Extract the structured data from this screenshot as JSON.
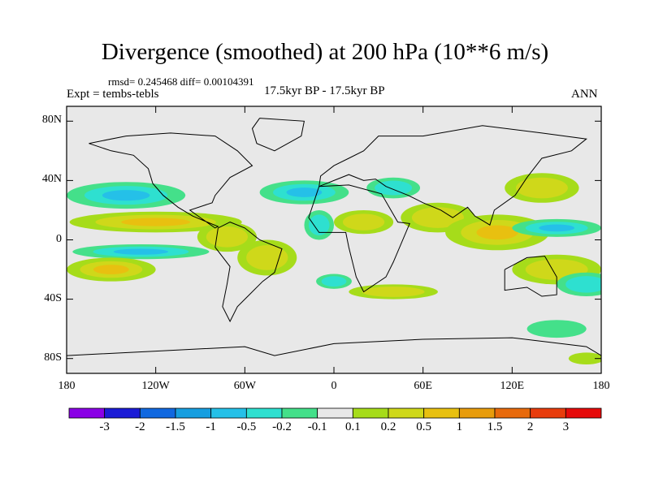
{
  "title": "Divergence (smoothed) at 200 hPa (10**6 m/s)",
  "stats": "rmsd= 0.245468 diff= 0.00104391",
  "experiment": "Expt = tembs-tebls",
  "period": "17.5kyr BP - 17.5kyr BP",
  "season": "ANN",
  "map": {
    "lon_range": [
      -180,
      180
    ],
    "lat_range": [
      -90,
      90
    ],
    "ocean_color": "#e8e8e8",
    "y_ticks": [
      {
        "lat": 80,
        "label": "80N"
      },
      {
        "lat": 40,
        "label": "40N"
      },
      {
        "lat": 0,
        "label": "0"
      },
      {
        "lat": -40,
        "label": "40S"
      },
      {
        "lat": -80,
        "label": "80S"
      }
    ],
    "x_ticks": [
      {
        "lon": -180,
        "label": "180"
      },
      {
        "lon": -120,
        "label": "120W"
      },
      {
        "lon": -60,
        "label": "60W"
      },
      {
        "lon": 0,
        "label": "0"
      },
      {
        "lon": 60,
        "label": "60E"
      },
      {
        "lon": 120,
        "label": "120E"
      },
      {
        "lon": 180,
        "label": "180"
      }
    ]
  },
  "colorbar": {
    "colors": [
      "#8a00e6",
      "#1b1bd6",
      "#1068e0",
      "#169ee0",
      "#25c0e8",
      "#2ee0d0",
      "#44e08a",
      "#e8e8e8",
      "#a6dc1a",
      "#cfd81a",
      "#e8c010",
      "#e89c0c",
      "#e86a0c",
      "#e83c0c",
      "#e60a0a"
    ],
    "labels": [
      "-3",
      "-2",
      "-1.5",
      "-1",
      "-0.5",
      "-0.2",
      "-0.1",
      "0.1",
      "0.2",
      "0.5",
      "1",
      "1.5",
      "2",
      "3"
    ]
  },
  "field": {
    "positive_levels": [
      "#a6dc1a",
      "#cfd81a",
      "#e8c010"
    ],
    "negative_levels": [
      "#44e08a",
      "#2ee0d0",
      "#25c0e8"
    ],
    "regions": [
      {
        "sign": 1,
        "level": 3,
        "lon": -120,
        "lat": 12,
        "dlon": 58,
        "dlat": 7
      },
      {
        "sign": -1,
        "level": 3,
        "lon": -140,
        "lat": 30,
        "dlon": 40,
        "dlat": 9
      },
      {
        "sign": -1,
        "level": 3,
        "lon": -130,
        "lat": -8,
        "dlon": 46,
        "dlat": 5
      },
      {
        "sign": 1,
        "level": 3,
        "lon": -150,
        "lat": -20,
        "dlon": 30,
        "dlat": 8
      },
      {
        "sign": 1,
        "level": 2,
        "lon": -72,
        "lat": 2,
        "dlon": 20,
        "dlat": 10
      },
      {
        "sign": 1,
        "level": 2,
        "lon": -45,
        "lat": -12,
        "dlon": 20,
        "dlat": 12
      },
      {
        "sign": -1,
        "level": 3,
        "lon": -20,
        "lat": 32,
        "dlon": 30,
        "dlat": 8
      },
      {
        "sign": -1,
        "level": 2,
        "lon": -10,
        "lat": 10,
        "dlon": 10,
        "dlat": 10
      },
      {
        "sign": 1,
        "level": 2,
        "lon": 20,
        "lat": 12,
        "dlon": 20,
        "dlat": 8
      },
      {
        "sign": -1,
        "level": 2,
        "lon": 40,
        "lat": 35,
        "dlon": 18,
        "dlat": 7
      },
      {
        "sign": 1,
        "level": 2,
        "lon": 70,
        "lat": 15,
        "dlon": 25,
        "dlat": 10
      },
      {
        "sign": 1,
        "level": 3,
        "lon": 110,
        "lat": 5,
        "dlon": 35,
        "dlat": 12
      },
      {
        "sign": -1,
        "level": 3,
        "lon": 150,
        "lat": 8,
        "dlon": 30,
        "dlat": 6
      },
      {
        "sign": 1,
        "level": 2,
        "lon": 150,
        "lat": -20,
        "dlon": 30,
        "dlat": 10
      },
      {
        "sign": -1,
        "level": 2,
        "lon": 170,
        "lat": -30,
        "dlon": 20,
        "dlat": 8
      },
      {
        "sign": 1,
        "level": 2,
        "lon": 40,
        "lat": -35,
        "dlon": 30,
        "dlat": 5
      },
      {
        "sign": -1,
        "level": 2,
        "lon": 0,
        "lat": -28,
        "dlon": 12,
        "dlat": 5
      },
      {
        "sign": 1,
        "level": 2,
        "lon": 140,
        "lat": 35,
        "dlon": 25,
        "dlat": 10
      },
      {
        "sign": -1,
        "level": 1,
        "lon": 150,
        "lat": -60,
        "dlon": 20,
        "dlat": 6
      },
      {
        "sign": 1,
        "level": 1,
        "lon": 170,
        "lat": -80,
        "dlon": 12,
        "dlat": 4
      }
    ]
  }
}
